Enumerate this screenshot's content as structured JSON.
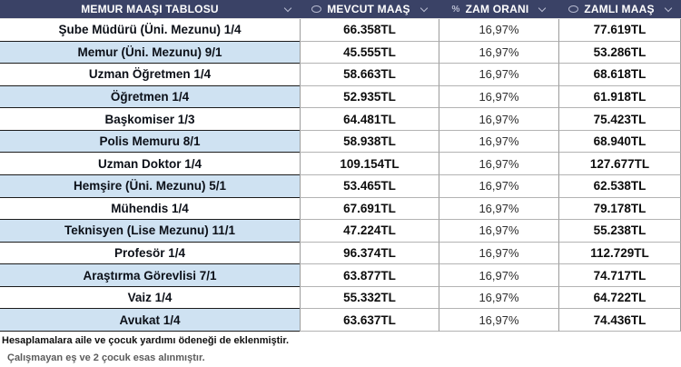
{
  "chart_data": {
    "type": "table",
    "title": "MEMUR MAAŞI TABLOSU",
    "columns": [
      {
        "label": "MEMUR MAAŞI TABLOSU",
        "icon": null
      },
      {
        "label": "MEVCUT MAAŞ",
        "icon": "currency-icon"
      },
      {
        "label": "ZAM ORANI",
        "icon": "percent-icon"
      },
      {
        "label": "ZAMLI MAAŞ",
        "icon": "currency-icon"
      }
    ],
    "rows": [
      {
        "position": "Şube Müdürü (Üni. Mezunu) 1/4",
        "current_salary": "66.358TL",
        "raise_rate": "16,97%",
        "raised_salary": "77.619TL"
      },
      {
        "position": "Memur (Üni. Mezunu) 9/1",
        "current_salary": "45.555TL",
        "raise_rate": "16,97%",
        "raised_salary": "53.286TL"
      },
      {
        "position": "Uzman Öğretmen 1/4",
        "current_salary": "58.663TL",
        "raise_rate": "16,97%",
        "raised_salary": "68.618TL"
      },
      {
        "position": "Öğretmen 1/4",
        "current_salary": "52.935TL",
        "raise_rate": "16,97%",
        "raised_salary": "61.918TL"
      },
      {
        "position": "Başkomiser 1/3",
        "current_salary": "64.481TL",
        "raise_rate": "16,97%",
        "raised_salary": "75.423TL"
      },
      {
        "position": "Polis Memuru 8/1",
        "current_salary": "58.938TL",
        "raise_rate": "16,97%",
        "raised_salary": "68.940TL"
      },
      {
        "position": "Uzman Doktor 1/4",
        "current_salary": "109.154TL",
        "raise_rate": "16,97%",
        "raised_salary": "127.677TL"
      },
      {
        "position": "Hemşire (Üni. Mezunu) 5/1",
        "current_salary": "53.465TL",
        "raise_rate": "16,97%",
        "raised_salary": "62.538TL"
      },
      {
        "position": "Mühendis 1/4",
        "current_salary": "67.691TL",
        "raise_rate": "16,97%",
        "raised_salary": "79.178TL"
      },
      {
        "position": "Teknisyen (Lise Mezunu) 11/1",
        "current_salary": "47.224TL",
        "raise_rate": "16,97%",
        "raised_salary": "55.238TL"
      },
      {
        "position": "Profesör 1/4",
        "current_salary": "96.374TL",
        "raise_rate": "16,97%",
        "raised_salary": "112.729TL"
      },
      {
        "position": "Araştırma Görevlisi 7/1",
        "current_salary": "63.877TL",
        "raise_rate": "16,97%",
        "raised_salary": "74.717TL"
      },
      {
        "position": "Vaiz 1/4",
        "current_salary": "55.332TL",
        "raise_rate": "16,97%",
        "raised_salary": "64.722TL"
      },
      {
        "position": "Avukat 1/4",
        "current_salary": "63.637TL",
        "raise_rate": "16,97%",
        "raised_salary": "74.436TL"
      }
    ],
    "footnotes": [
      "Hesaplamalara aile ve çocuk yardımı ödeneği de eklenmiştir.",
      "Çalışmayan eş ve 2 çocuk esas alınmıştır."
    ]
  },
  "icons": {
    "percent_glyph": "%"
  },
  "colors": {
    "header_bg": "#3a4266",
    "header_text": "#ffffff",
    "header_icon": "#b9bdd2",
    "row_bg": "#ffffff",
    "alt_row_bg": "#cfe2f2",
    "dark_border": "#1b1b1b",
    "gray_border": "#9b9b9b",
    "value_text": "#0d0d0d"
  }
}
